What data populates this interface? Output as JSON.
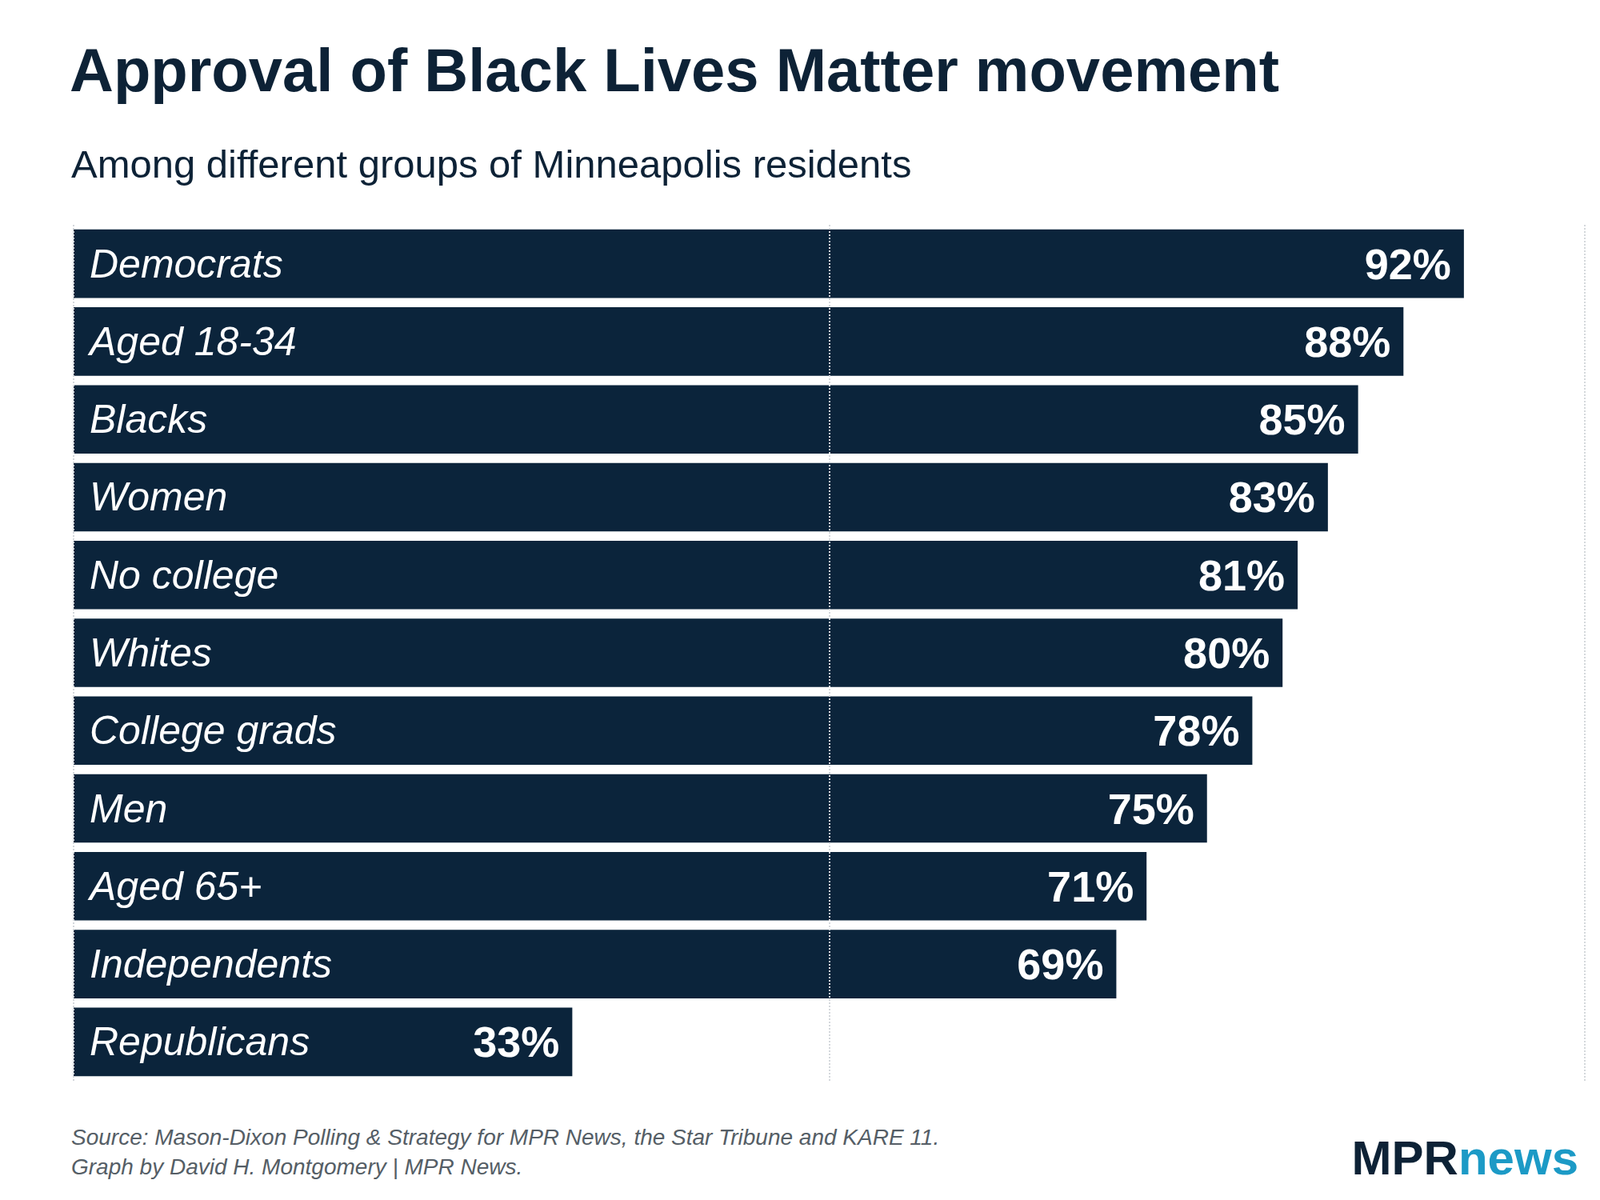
{
  "chart_data": {
    "type": "bar",
    "orientation": "horizontal",
    "title": "Approval of Black Lives Matter movement",
    "subtitle": "Among different groups of Minneapolis residents",
    "categories": [
      "Democrats",
      "Aged 18-34",
      "Blacks",
      "Women",
      "No college",
      "Whites",
      "College grads",
      "Men",
      "Aged 65+",
      "Independents",
      "Republicans"
    ],
    "values": [
      92,
      88,
      85,
      83,
      81,
      80,
      78,
      75,
      71,
      69,
      33
    ],
    "value_labels": [
      "92%",
      "88%",
      "85%",
      "83%",
      "81%",
      "80%",
      "78%",
      "75%",
      "71%",
      "69%",
      "33%"
    ],
    "data_labels": true,
    "color": "#0b243b",
    "xlim": [
      0,
      100
    ],
    "xticks": [
      0,
      50,
      100
    ],
    "grid": true,
    "tick_labels": "y",
    "source": "Source: Mason-Dixon Polling & Strategy for MPR News, the Star Tribune and KARE 11.",
    "credit": "Graph by David H. Montgomery | MPR News.",
    "logo": [
      "MPR",
      "news"
    ]
  }
}
